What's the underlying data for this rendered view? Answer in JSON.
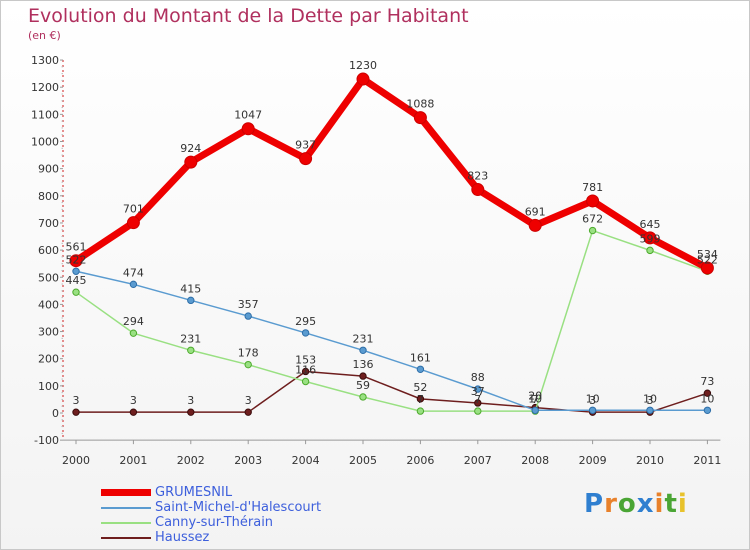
{
  "title": "Evolution du Montant de la Dette par Habitant",
  "subtitle": "(en €)",
  "logo": {
    "text": "Proxiti",
    "colors": [
      "#2f7fd0",
      "#e8812b",
      "#4aa534",
      "#2f7fd0",
      "#e8812b",
      "#4aa534",
      "#e8c22b"
    ]
  },
  "chart_data": {
    "type": "line",
    "title": "Evolution du Montant de la Dette par Habitant",
    "ylabel": "(en €)",
    "x": [
      "2000",
      "2001",
      "2002",
      "2003",
      "2004",
      "2005",
      "2006",
      "2007",
      "2008",
      "2009",
      "2010",
      "2011"
    ],
    "ylim": [
      -100,
      1300
    ],
    "yticks": [
      -100,
      0,
      100,
      200,
      300,
      400,
      500,
      600,
      700,
      800,
      900,
      1000,
      1100,
      1200,
      1300
    ],
    "grid": false,
    "legend_position": "bottom-left",
    "series": [
      {
        "name": "GRUMESNIL",
        "color": "#ee0000",
        "values": [
          561,
          701,
          924,
          1047,
          937,
          1230,
          1088,
          823,
          691,
          781,
          645,
          534
        ]
      },
      {
        "name": "Saint-Michel-d'Halescourt",
        "color": "#5a9bd0",
        "values": [
          522,
          474,
          415,
          357,
          295,
          231,
          161,
          88,
          10,
          10,
          10,
          10
        ]
      },
      {
        "name": "Canny-sur-Thérain",
        "color": "#99e082",
        "values": [
          445,
          294,
          231,
          178,
          116,
          59,
          7,
          7,
          7,
          672,
          599,
          522
        ]
      },
      {
        "name": "Haussez",
        "color": "#6e1e1e",
        "values": [
          3,
          3,
          3,
          3,
          153,
          136,
          52,
          37,
          20,
          3,
          3,
          73
        ]
      }
    ]
  }
}
